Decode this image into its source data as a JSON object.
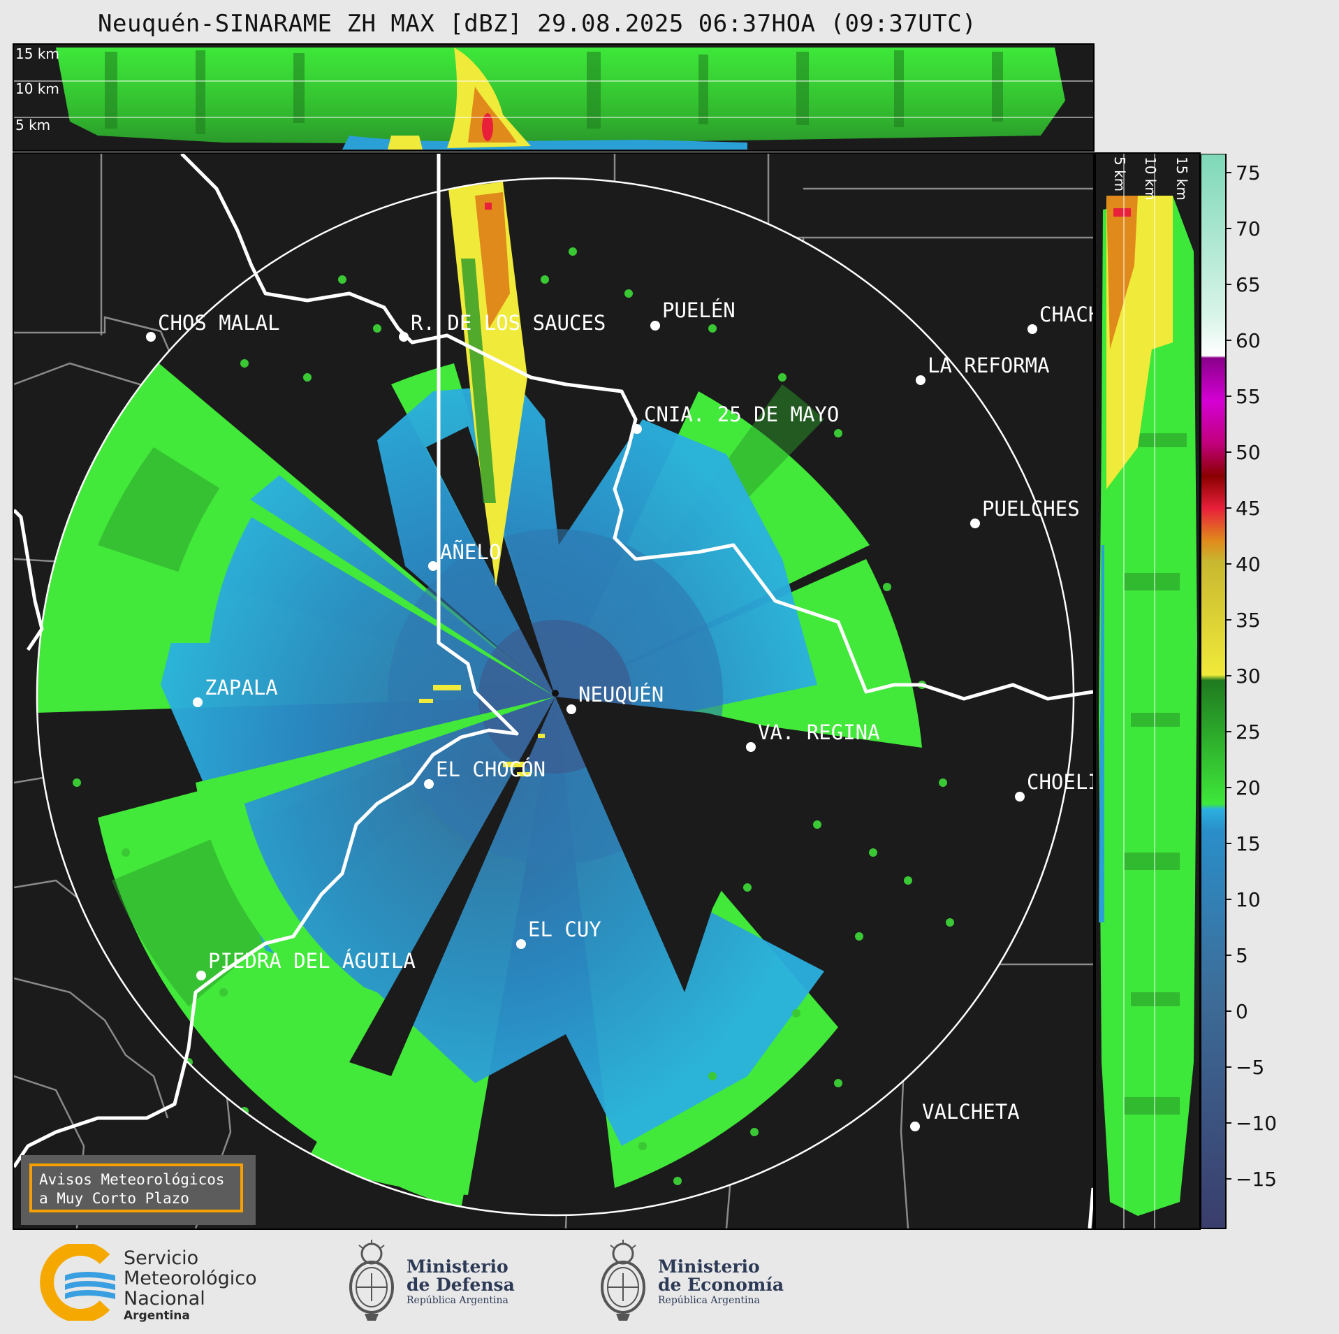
{
  "title": "Neuquén-SINARAME ZH MAX [dBZ] 29.08.2025 06:37HOA (09:37UTC)",
  "top_panel": {
    "height_labels": [
      "15 km",
      "10 km",
      "5 km"
    ]
  },
  "side_panel": {
    "height_labels": [
      "5 km",
      "10 km",
      "15 km"
    ]
  },
  "map": {
    "cities": [
      {
        "name": "CHOS MALAL"
      },
      {
        "name": "R. DE LOS SAUCES"
      },
      {
        "name": "PUELÉN"
      },
      {
        "name": "CHACH"
      },
      {
        "name": "LA REFORMA"
      },
      {
        "name": "CNIA. 25 DE MAYO"
      },
      {
        "name": "PUELCHES"
      },
      {
        "name": "AÑELO"
      },
      {
        "name": "ZAPALA"
      },
      {
        "name": "NEUQUÉN"
      },
      {
        "name": "VA. REGINA"
      },
      {
        "name": "EL CHOCÓN"
      },
      {
        "name": "CHOELI"
      },
      {
        "name": "EL CUY"
      },
      {
        "name": "PIEDRA DEL ÁGUILA"
      },
      {
        "name": "VALCHETA"
      }
    ],
    "notice": {
      "line1": "Avisos Meteorológicos",
      "line2": "a Muy Corto Plazo"
    }
  },
  "colorbar": {
    "unit": "dBZ",
    "ticks": [
      "75",
      "70",
      "65",
      "60",
      "55",
      "50",
      "45",
      "40",
      "35",
      "30",
      "25",
      "20",
      "15",
      "10",
      "5",
      "0",
      "−5",
      "−10",
      "−15"
    ],
    "colors": {
      "dbz_min": "#3a3d6b",
      "dbz_0": "#3d6d99",
      "dbz_10": "#2a8ec9",
      "dbz_18": "#2bb0e0",
      "dbz_20": "#3ee83a",
      "dbz_28": "#1f7a1f",
      "dbz_30": "#f0ea3a",
      "dbz_40": "#e08a1c",
      "dbz_45": "#e8203a",
      "dbz_48": "#8a0000",
      "dbz_52": "#c0007a",
      "dbz_56": "#d400d4",
      "dbz_60": "#ffffff",
      "dbz_65": "#b8ecd8",
      "dbz_75": "#7ed8b8"
    }
  },
  "footer": {
    "smn": {
      "line1": "Servicio",
      "line2": "Meteorológico",
      "line3": "Nacional",
      "line4": "Argentina"
    },
    "defensa": {
      "line1": "Ministerio",
      "line2": "de Defensa",
      "line3": "República Argentina"
    },
    "economia": {
      "line1": "Ministerio",
      "line2": "de Economía",
      "line3": "República Argentina"
    }
  }
}
